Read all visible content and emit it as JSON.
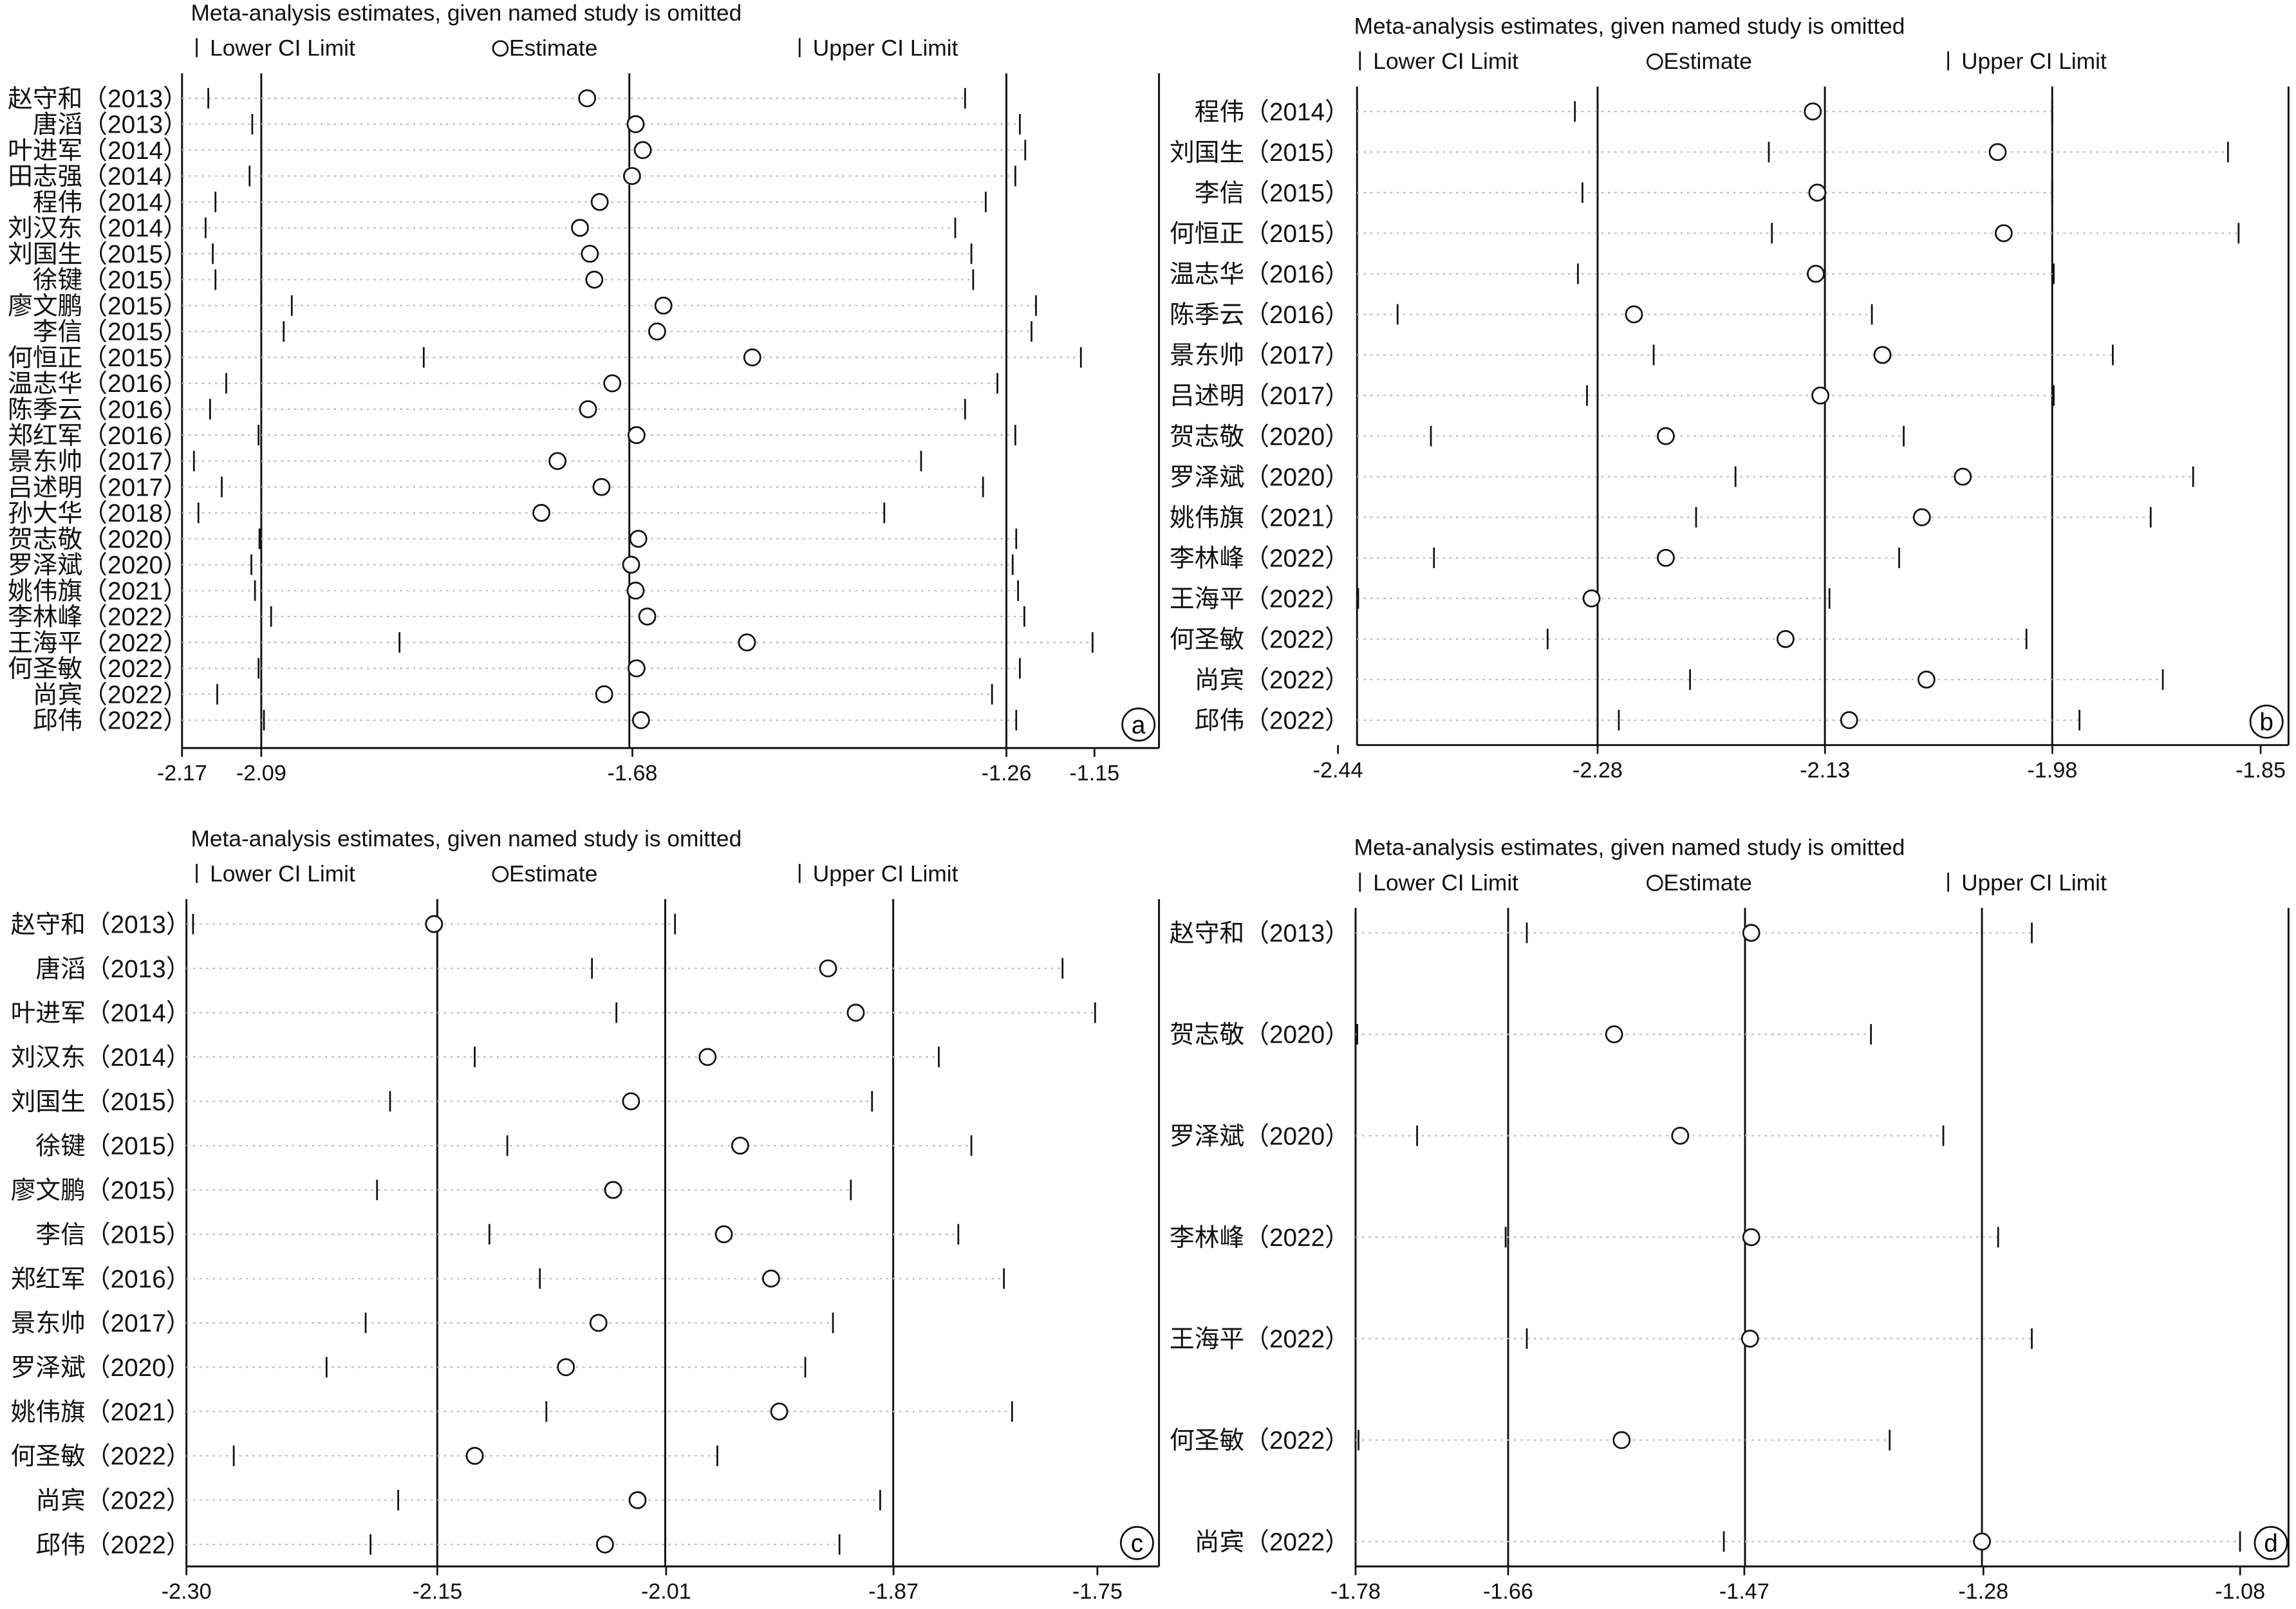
{
  "chart_data": [
    {
      "type": "sensitivity-forest",
      "panel_label": "a",
      "title": "Meta-analysis estimates, given named study is omitted",
      "legend": {
        "lower": "Lower CI Limit",
        "estimate": "Estimate",
        "upper": "Upper CI Limit"
      },
      "x_ticks": [
        "-2.17",
        "-2.09",
        "-1.68",
        "-1.26",
        "-1.15"
      ],
      "xlim": [
        -2.17,
        -1.15
      ],
      "reference_lines": [
        -2.09,
        -1.68,
        -1.26
      ],
      "studies": [
        {
          "label": "赵守和（2013）",
          "lower": -2.149,
          "estimate": -1.727,
          "upper": -1.306
        },
        {
          "label": "唐滔（2013）",
          "lower": -2.1,
          "estimate": -1.673,
          "upper": -1.245
        },
        {
          "label": "叶进军（2014）",
          "lower": -2.09,
          "estimate": -1.665,
          "upper": -1.239
        },
        {
          "label": "田志强（2014）",
          "lower": -2.103,
          "estimate": -1.677,
          "upper": -1.25
        },
        {
          "label": "程伟（2014）",
          "lower": -2.141,
          "estimate": -1.713,
          "upper": -1.283
        },
        {
          "label": "刘汉东（2014）",
          "lower": -2.152,
          "estimate": -1.735,
          "upper": -1.317
        },
        {
          "label": "刘国生（2015）",
          "lower": -2.144,
          "estimate": -1.724,
          "upper": -1.299
        },
        {
          "label": "徐键（2015）",
          "lower": -2.141,
          "estimate": -1.719,
          "upper": -1.297
        },
        {
          "label": "廖文鹏（2015）",
          "lower": -2.056,
          "estimate": -1.642,
          "upper": -1.227
        },
        {
          "label": "李信（2015）",
          "lower": -2.065,
          "estimate": -1.649,
          "upper": -1.232
        },
        {
          "label": "何恒正（2015）",
          "lower": -1.909,
          "estimate": -1.543,
          "upper": -1.177
        },
        {
          "label": "温志华（2016）",
          "lower": -2.129,
          "estimate": -1.699,
          "upper": -1.27
        },
        {
          "label": "陈季云（2016）",
          "lower": -2.147,
          "estimate": -1.726,
          "upper": -1.306
        },
        {
          "label": "郑红军（2016）",
          "lower": -2.093,
          "estimate": -1.672,
          "upper": -1.25
        },
        {
          "label": "景东帅（2017）",
          "lower": -2.165,
          "estimate": -1.76,
          "upper": -1.355
        },
        {
          "label": "吕述明（2017）",
          "lower": -2.134,
          "estimate": -1.711,
          "upper": -1.286
        },
        {
          "label": "孙大华（2018）",
          "lower": -2.16,
          "estimate": -1.778,
          "upper": -1.396
        },
        {
          "label": "贺志敬（2020）",
          "lower": -2.092,
          "estimate": -1.67,
          "upper": -1.249
        },
        {
          "label": "罗泽斌（2020）",
          "lower": -2.101,
          "estimate": -1.678,
          "upper": -1.253
        },
        {
          "label": "姚伟旗（2021）",
          "lower": -2.097,
          "estimate": -1.673,
          "upper": -1.247
        },
        {
          "label": "李林峰（2022）",
          "lower": -2.079,
          "estimate": -1.66,
          "upper": -1.24
        },
        {
          "label": "王海平（2022）",
          "lower": -1.936,
          "estimate": -1.549,
          "upper": -1.164
        },
        {
          "label": "何圣敏（2022）",
          "lower": -2.093,
          "estimate": -1.672,
          "upper": -1.245
        },
        {
          "label": "尚宾（2022）",
          "lower": -2.139,
          "estimate": -1.708,
          "upper": -1.276
        },
        {
          "label": "邱伟（2022）",
          "lower": -2.087,
          "estimate": -1.667,
          "upper": -1.249
        }
      ]
    },
    {
      "type": "sensitivity-forest",
      "panel_label": "b",
      "title": "Meta-analysis estimates, given named study is omitted",
      "legend": {
        "lower": "Lower CI Limit",
        "estimate": "Estimate",
        "upper": "Upper CI Limit"
      },
      "x_ticks": [
        "-2.44",
        "-2.28",
        "-2.13",
        "-1.98",
        "-1.85"
      ],
      "xlim": [
        -2.44,
        -1.85
      ],
      "reference_lines": [
        -2.28,
        -2.13,
        -1.98
      ],
      "studies": [
        {
          "label": "程伟（2014）",
          "lower": -2.295,
          "estimate": -2.138,
          "upper": -1.98
        },
        {
          "label": "刘国生（2015）",
          "lower": -2.167,
          "estimate": -2.016,
          "upper": -1.864
        },
        {
          "label": "李信（2015）",
          "lower": -2.29,
          "estimate": -2.135,
          "upper": -1.98
        },
        {
          "label": "何恒正（2015）",
          "lower": -2.165,
          "estimate": -2.012,
          "upper": -1.857
        },
        {
          "label": "温志华（2016）",
          "lower": -2.293,
          "estimate": -2.136,
          "upper": -1.979
        },
        {
          "label": "陈季云（2016）",
          "lower": -2.412,
          "estimate": -2.256,
          "upper": -2.099
        },
        {
          "label": "景东帅（2017）",
          "lower": -2.243,
          "estimate": -2.092,
          "upper": -1.94
        },
        {
          "label": "吕述明（2017）",
          "lower": -2.287,
          "estimate": -2.133,
          "upper": -1.979
        },
        {
          "label": "贺志敬（2020）",
          "lower": -2.39,
          "estimate": -2.235,
          "upper": -2.078
        },
        {
          "label": "罗泽斌（2020）",
          "lower": -2.189,
          "estimate": -2.039,
          "upper": -1.887
        },
        {
          "label": "姚伟旗（2021）",
          "lower": -2.215,
          "estimate": -2.066,
          "upper": -1.915
        },
        {
          "label": "李林峰（2022）",
          "lower": -2.388,
          "estimate": -2.235,
          "upper": -2.081
        },
        {
          "label": "王海平（2022）",
          "lower": -2.438,
          "estimate": -2.284,
          "upper": -2.127
        },
        {
          "label": "何圣敏（2022）",
          "lower": -2.313,
          "estimate": -2.156,
          "upper": -1.997
        },
        {
          "label": "尚宾（2022）",
          "lower": -2.219,
          "estimate": -2.063,
          "upper": -1.907
        },
        {
          "label": "邱伟（2022）",
          "lower": -2.266,
          "estimate": -2.114,
          "upper": -1.962
        }
      ]
    },
    {
      "type": "sensitivity-forest",
      "panel_label": "c",
      "title": "Meta-analysis estimates, given named study is omitted",
      "legend": {
        "lower": "Lower CI Limit",
        "estimate": "Estimate",
        "upper": "Upper CI Limit"
      },
      "x_ticks": [
        "-2.30",
        "-2.15",
        "-2.01",
        "-1.87",
        "-1.75"
      ],
      "xlim": [
        -2.3,
        -1.75
      ],
      "reference_lines": [
        -2.15,
        -2.01,
        -1.87
      ],
      "studies": [
        {
          "label": "赵守和（2013）",
          "lower": -2.3,
          "estimate": -2.152,
          "upper": -2.004
        },
        {
          "label": "唐滔（2013）",
          "lower": -2.055,
          "estimate": -1.91,
          "upper": -1.766
        },
        {
          "label": "叶进军（2014）",
          "lower": -2.04,
          "estimate": -1.893,
          "upper": -1.746
        },
        {
          "label": "刘汉东（2014）",
          "lower": -2.127,
          "estimate": -1.984,
          "upper": -1.842
        },
        {
          "label": "刘国生（2015）",
          "lower": -2.179,
          "estimate": -2.031,
          "upper": -1.883
        },
        {
          "label": "徐键（2015）",
          "lower": -2.107,
          "estimate": -1.964,
          "upper": -1.822
        },
        {
          "label": "廖文鹏（2015）",
          "lower": -2.187,
          "estimate": -2.042,
          "upper": -1.896
        },
        {
          "label": "李信（2015）",
          "lower": -2.118,
          "estimate": -1.974,
          "upper": -1.83
        },
        {
          "label": "郑红军（2016）",
          "lower": -2.087,
          "estimate": -1.945,
          "upper": -1.802
        },
        {
          "label": "景东帅（2017）",
          "lower": -2.194,
          "estimate": -2.051,
          "upper": -1.907
        },
        {
          "label": "罗泽斌（2020）",
          "lower": -2.218,
          "estimate": -2.071,
          "upper": -1.924
        },
        {
          "label": "姚伟旗（2021）",
          "lower": -2.083,
          "estimate": -1.94,
          "upper": -1.797
        },
        {
          "label": "何圣敏（2022）",
          "lower": -2.275,
          "estimate": -2.127,
          "upper": -1.978
        },
        {
          "label": "尚宾（2022）",
          "lower": -2.174,
          "estimate": -2.027,
          "upper": -1.878
        },
        {
          "label": "邱伟（2022）",
          "lower": -2.191,
          "estimate": -2.047,
          "upper": -1.903
        }
      ]
    },
    {
      "type": "sensitivity-forest",
      "panel_label": "d",
      "title": "Meta-analysis estimates, given named study is omitted",
      "legend": {
        "lower": "Lower CI Limit",
        "estimate": "Estimate",
        "upper": "Upper CI Limit"
      },
      "x_ticks": [
        "-1.78",
        "-1.66",
        "-1.47",
        "-1.28",
        "-1.08"
      ],
      "xlim": [
        -1.78,
        -1.08
      ],
      "reference_lines": [
        -1.66,
        -1.47,
        -1.28
      ],
      "studies": [
        {
          "label": "赵守和（2013）",
          "lower": -1.645,
          "estimate": -1.465,
          "upper": -1.24
        },
        {
          "label": "贺志敬（2020）",
          "lower": -1.781,
          "estimate": -1.575,
          "upper": -1.369
        },
        {
          "label": "罗泽斌（2020）",
          "lower": -1.733,
          "estimate": -1.522,
          "upper": -1.311
        },
        {
          "label": "李林峰（2022）",
          "lower": -1.662,
          "estimate": -1.465,
          "upper": -1.267
        },
        {
          "label": "王海平（2022）",
          "lower": -1.645,
          "estimate": -1.466,
          "upper": -1.24
        },
        {
          "label": "何圣敏（2022）",
          "lower": -1.78,
          "estimate": -1.569,
          "upper": -1.354
        },
        {
          "label": "尚宾（2022）",
          "lower": -1.487,
          "estimate": -1.28,
          "upper": -1.073
        }
      ]
    }
  ]
}
